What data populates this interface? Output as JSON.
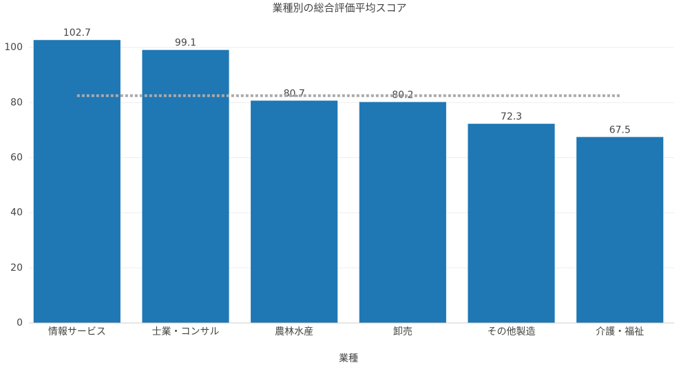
{
  "chart_data": {
    "type": "bar",
    "title": "業種別の総合評価平均スコア",
    "x_label": "業種",
    "categories": [
      "情報サービス",
      "士業・コンサル",
      "農林水産",
      "卸売",
      "その他製造",
      "介護・福祉"
    ],
    "values": [
      102.7,
      99.1,
      80.7,
      80.2,
      72.3,
      67.5
    ],
    "color": "#1f77b4",
    "reference_line": 82.5,
    "reference_color": "#aaaaaa",
    "ylim": [
      0,
      107.5
    ],
    "yticks": [
      0,
      20,
      40,
      60,
      80,
      100
    ],
    "grid": true
  }
}
